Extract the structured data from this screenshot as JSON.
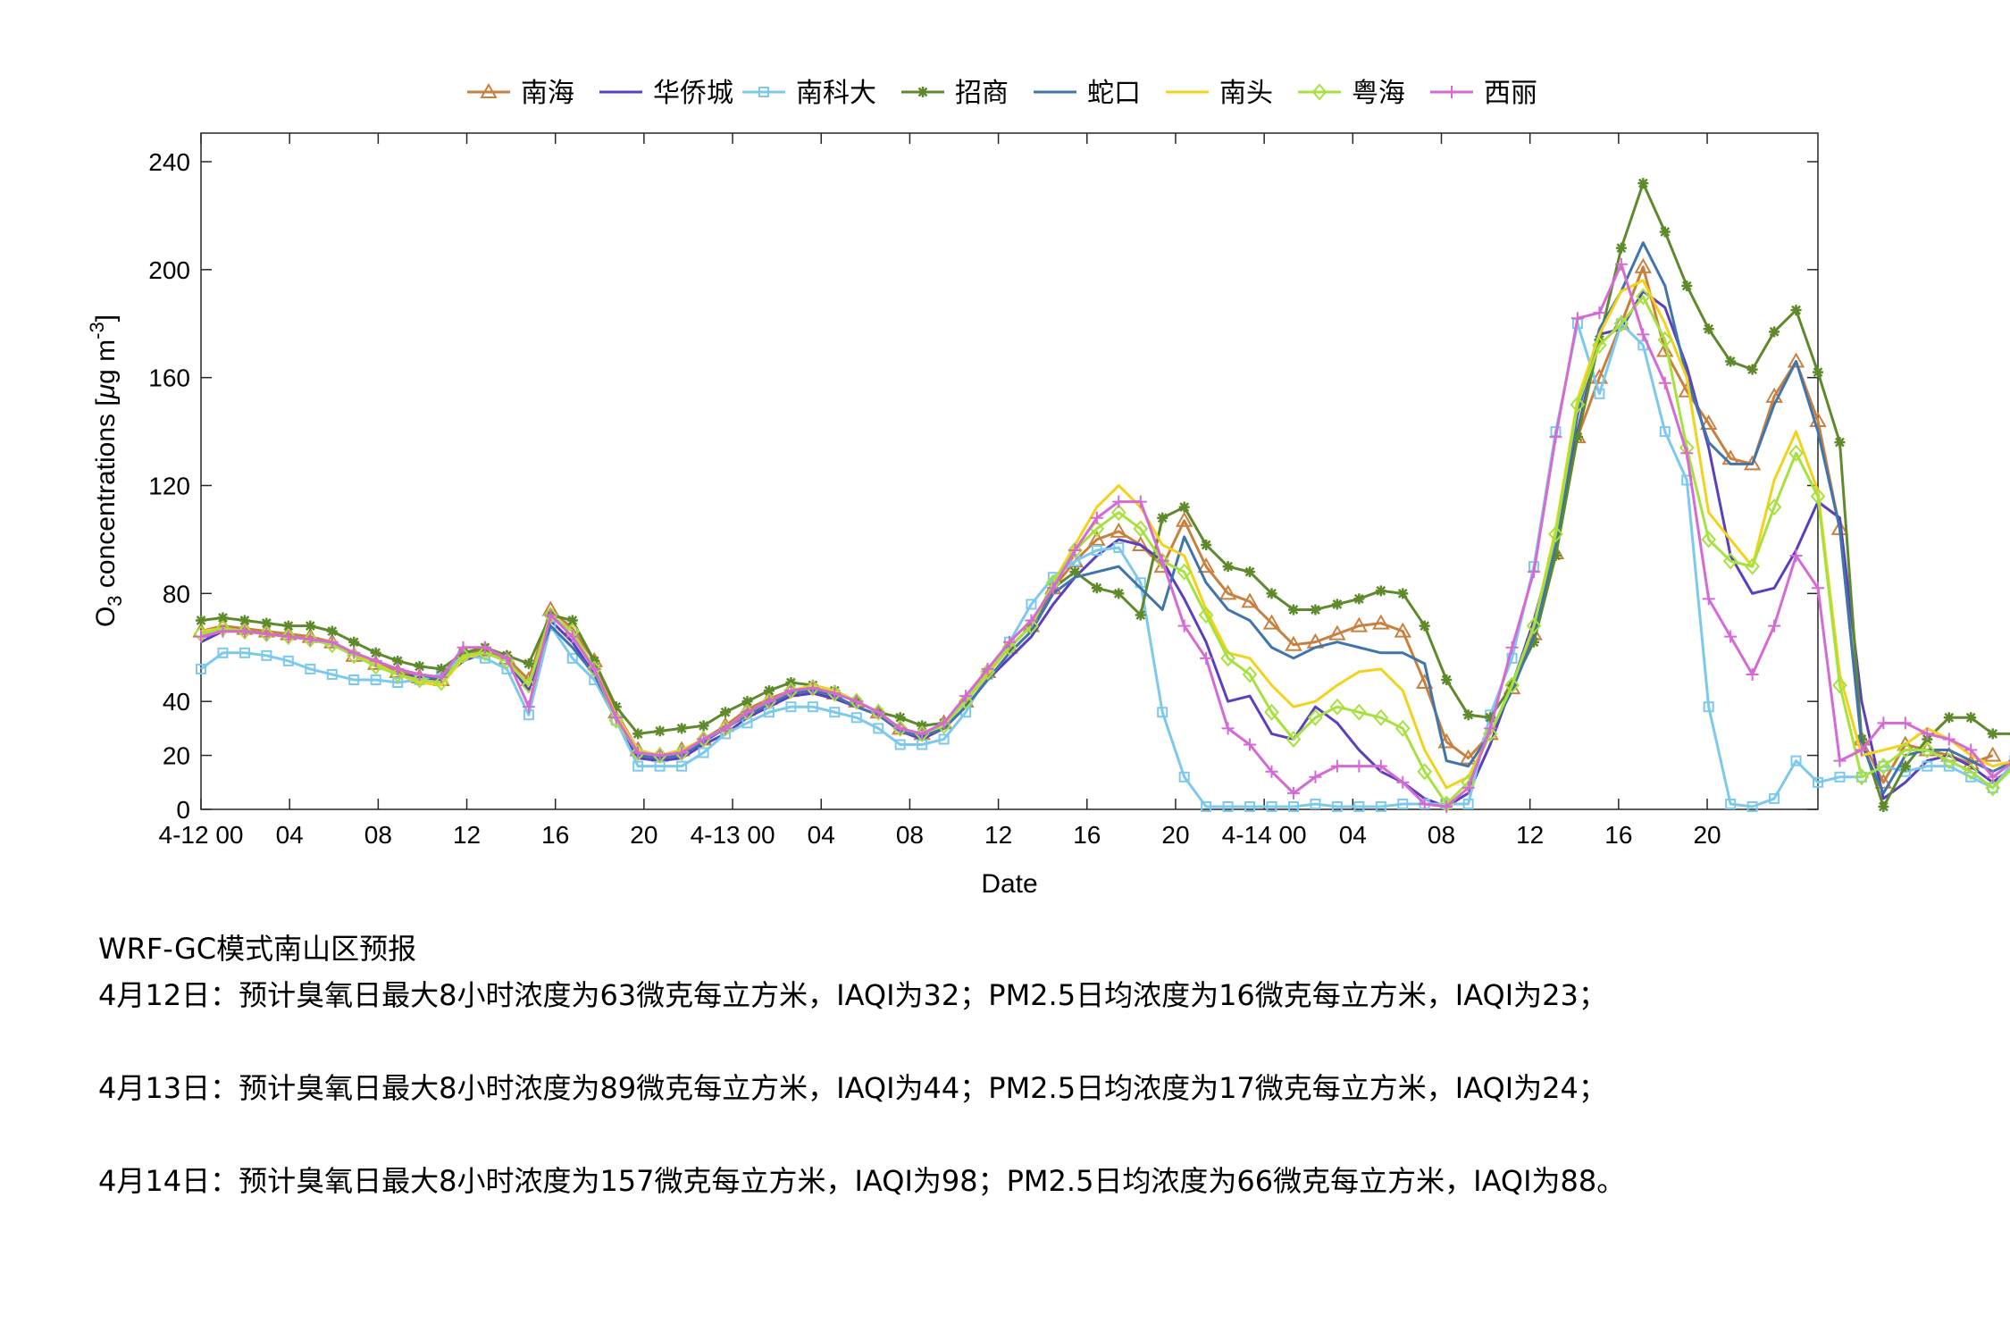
{
  "chart_data": {
    "type": "line",
    "xlabel": "Date",
    "ylabel": "O3 concentrations [μg m-3]",
    "ylim": [
      0,
      250
    ],
    "xlim": [
      0,
      73
    ],
    "legend_position": "top",
    "grid": false,
    "y_ticks": [
      0,
      20,
      40,
      80,
      120,
      160,
      200,
      240
    ],
    "x_ticks": [
      {
        "h": 0,
        "label": "4-12 00"
      },
      {
        "h": 4,
        "label": "04"
      },
      {
        "h": 8,
        "label": "08"
      },
      {
        "h": 12,
        "label": "12"
      },
      {
        "h": 16,
        "label": "16"
      },
      {
        "h": 20,
        "label": "20"
      },
      {
        "h": 24,
        "label": "4-13 00"
      },
      {
        "h": 28,
        "label": "04"
      },
      {
        "h": 32,
        "label": "08"
      },
      {
        "h": 36,
        "label": "12"
      },
      {
        "h": 40,
        "label": "16"
      },
      {
        "h": 44,
        "label": "20"
      },
      {
        "h": 48,
        "label": "4-14 00"
      },
      {
        "h": 52,
        "label": "04"
      },
      {
        "h": 56,
        "label": "08"
      },
      {
        "h": 60,
        "label": "12"
      },
      {
        "h": 64,
        "label": "16"
      },
      {
        "h": 68,
        "label": "20"
      }
    ],
    "x_start": 0,
    "series": [
      {
        "name": "南海",
        "color": "#c8803f",
        "marker": "triangle",
        "values": [
          66,
          68,
          68,
          67,
          66,
          66,
          64,
          60,
          55,
          52,
          50,
          48,
          58,
          60,
          56,
          48,
          74,
          68,
          55,
          36,
          22,
          20,
          22,
          26,
          30,
          36,
          40,
          44,
          46,
          44,
          40,
          36,
          30,
          28,
          32,
          40,
          50,
          58,
          66,
          80,
          92,
          100,
          104,
          98,
          94,
          104,
          90,
          80,
          74,
          68,
          62,
          60,
          64,
          66,
          68,
          66,
          54,
          34,
          18,
          14,
          40,
          68,
          100,
          120,
          140,
          150,
          156,
          150,
          136,
          124,
          112,
          104,
          104,
          110,
          150,
          144,
          104,
          26,
          12,
          22,
          20,
          18,
          16,
          20
        ],
        "display": [
          66,
          68,
          67,
          66,
          65,
          64,
          62,
          57,
          54,
          51,
          49,
          48,
          58,
          59,
          56,
          48,
          74,
          67,
          55,
          36,
          22,
          20,
          22,
          26,
          31,
          37,
          41,
          44,
          45,
          43,
          40,
          36,
          30,
          28,
          32,
          40,
          51,
          60,
          68,
          82,
          92,
          100,
          103,
          98,
          90,
          107,
          90,
          80,
          77,
          69,
          61,
          62,
          65,
          68,
          69,
          66,
          47,
          25,
          19,
          28,
          45,
          65,
          95,
          138,
          160,
          180,
          201,
          170,
          155,
          143,
          130,
          128,
          153,
          166,
          144,
          104,
          26,
          10,
          24,
          22,
          20,
          17,
          20
        ]
      },
      {
        "name": "华侨城",
        "color": "#5a3fbf",
        "marker": "none",
        "display": [
          62,
          66,
          66,
          65,
          64,
          63,
          61,
          58,
          54,
          50,
          49,
          48,
          55,
          58,
          55,
          44,
          70,
          62,
          50,
          33,
          19,
          18,
          19,
          24,
          28,
          34,
          38,
          42,
          43,
          41,
          38,
          35,
          29,
          26,
          30,
          38,
          48,
          56,
          64,
          76,
          86,
          94,
          100,
          98,
          92,
          78,
          62,
          40,
          42,
          28,
          26,
          38,
          32,
          22,
          14,
          10,
          4,
          1,
          6,
          24,
          46,
          70,
          100,
          140,
          176,
          178,
          192,
          186,
          164,
          134,
          94,
          80,
          82,
          96,
          114,
          108,
          40,
          4,
          10,
          18,
          20,
          16,
          10,
          16
        ]
      },
      {
        "name": "南科大",
        "color": "#7dc9ee",
        "marker": "square",
        "display": [
          52,
          58,
          58,
          57,
          55,
          52,
          50,
          48,
          48,
          47,
          48,
          50,
          57,
          56,
          52,
          35,
          68,
          56,
          48,
          33,
          16,
          16,
          16,
          21,
          28,
          32,
          36,
          38,
          38,
          36,
          34,
          30,
          24,
          24,
          26,
          36,
          50,
          62,
          76,
          86,
          92,
          96,
          97,
          84,
          36,
          12,
          1,
          1,
          1,
          1,
          1,
          2,
          1,
          1,
          1,
          2,
          2,
          2,
          2,
          35,
          56,
          90,
          140,
          180,
          154,
          180,
          172,
          140,
          122,
          38,
          2,
          1,
          4,
          18,
          10,
          12,
          12,
          16,
          14,
          16,
          16,
          12,
          8,
          18
        ]
      },
      {
        "name": "招商",
        "color": "#5e8a2c",
        "marker": "star",
        "display": [
          70,
          71,
          70,
          69,
          68,
          68,
          66,
          62,
          58,
          55,
          53,
          52,
          58,
          60,
          57,
          54,
          72,
          70,
          55,
          38,
          28,
          29,
          30,
          31,
          36,
          40,
          44,
          47,
          46,
          44,
          40,
          36,
          34,
          31,
          32,
          40,
          50,
          60,
          68,
          82,
          88,
          82,
          80,
          72,
          108,
          112,
          98,
          90,
          88,
          80,
          74,
          74,
          76,
          78,
          81,
          80,
          68,
          48,
          35,
          34,
          46,
          62,
          94,
          138,
          174,
          208,
          232,
          214,
          194,
          178,
          166,
          163,
          177,
          185,
          162,
          136,
          26,
          1,
          16,
          26,
          34,
          34,
          28,
          28
        ]
      },
      {
        "name": "蛇口",
        "color": "#3f75ad",
        "marker": "none",
        "display": [
          64,
          66,
          66,
          65,
          64,
          63,
          61,
          58,
          55,
          52,
          50,
          48,
          56,
          58,
          55,
          46,
          68,
          60,
          50,
          34,
          20,
          19,
          20,
          25,
          30,
          35,
          39,
          43,
          44,
          42,
          38,
          35,
          29,
          27,
          30,
          38,
          48,
          58,
          66,
          80,
          86,
          88,
          90,
          82,
          74,
          101,
          84,
          74,
          70,
          60,
          56,
          60,
          62,
          60,
          58,
          58,
          54,
          18,
          16,
          28,
          44,
          64,
          98,
          146,
          178,
          192,
          210,
          194,
          160,
          136,
          128,
          128,
          150,
          166,
          140,
          104,
          24,
          6,
          20,
          22,
          22,
          18,
          14,
          18
        ]
      },
      {
        "name": "南头",
        "color": "#f4d21a",
        "marker": "none",
        "display": [
          66,
          67,
          66,
          65,
          64,
          63,
          62,
          58,
          54,
          50,
          47,
          46,
          56,
          58,
          55,
          46,
          72,
          66,
          52,
          35,
          22,
          20,
          22,
          26,
          30,
          36,
          40,
          44,
          46,
          44,
          40,
          36,
          30,
          28,
          32,
          40,
          50,
          60,
          68,
          84,
          98,
          112,
          120,
          112,
          98,
          94,
          74,
          58,
          56,
          46,
          38,
          40,
          46,
          51,
          52,
          44,
          22,
          8,
          12,
          28,
          46,
          68,
          104,
          152,
          176,
          192,
          196,
          180,
          160,
          110,
          100,
          90,
          122,
          140,
          118,
          50,
          20,
          22,
          24,
          30,
          26,
          20,
          16,
          18
        ]
      },
      {
        "name": "粤海",
        "color": "#a6e13e",
        "marker": "diamond",
        "display": [
          65,
          67,
          66,
          65,
          64,
          63,
          61,
          57,
          53,
          50,
          48,
          47,
          57,
          58,
          55,
          46,
          72,
          66,
          52,
          33,
          21,
          20,
          21,
          26,
          30,
          36,
          40,
          44,
          45,
          43,
          40,
          36,
          30,
          28,
          31,
          40,
          51,
          60,
          68,
          84,
          96,
          104,
          110,
          104,
          92,
          88,
          72,
          56,
          50,
          36,
          26,
          34,
          38,
          36,
          34,
          30,
          14,
          2,
          10,
          28,
          46,
          68,
          102,
          150,
          172,
          180,
          190,
          174,
          134,
          100,
          92,
          90,
          112,
          132,
          116,
          46,
          12,
          16,
          22,
          22,
          18,
          14,
          8,
          16
        ]
      },
      {
        "name": "西丽",
        "color": "#d66ad4",
        "marker": "plus",
        "display": [
          64,
          66,
          66,
          65,
          64,
          63,
          62,
          58,
          55,
          52,
          50,
          49,
          60,
          60,
          56,
          38,
          72,
          64,
          52,
          34,
          21,
          20,
          21,
          26,
          30,
          36,
          40,
          44,
          45,
          43,
          40,
          36,
          30,
          28,
          32,
          42,
          52,
          62,
          70,
          82,
          96,
          108,
          114,
          114,
          92,
          68,
          56,
          30,
          24,
          14,
          6,
          12,
          16,
          16,
          16,
          10,
          2,
          1,
          8,
          30,
          60,
          88,
          138,
          182,
          184,
          202,
          176,
          158,
          132,
          78,
          64,
          50,
          68,
          94,
          82,
          18,
          22,
          32,
          32,
          28,
          26,
          22,
          12,
          18
        ]
      }
    ]
  },
  "notes": {
    "title": "WRF-GC模式南山区预报",
    "line1": "4月12日：预计臭氧日最大8小时浓度为63微克每立方米，IAQI为32；PM2.5日均浓度为16微克每立方米，IAQI为23；",
    "line2": "4月13日：预计臭氧日最大8小时浓度为89微克每立方米，IAQI为44；PM2.5日均浓度为17微克每立方米，IAQI为24；",
    "line3": "4月14日：预计臭氧日最大8小时浓度为157微克每立方米，IAQI为98；PM2.5日均浓度为66微克每立方米，IAQI为88。"
  }
}
